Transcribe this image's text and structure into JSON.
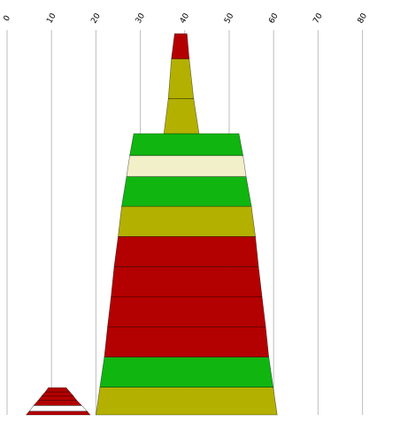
{
  "chart_data": {
    "type": "area",
    "title": "",
    "xlabel": "",
    "ylabel": "",
    "xlim": [
      0,
      85
    ],
    "x_ticks": [
      "0",
      "10",
      "20",
      "30",
      "40",
      "50",
      "60",
      "70",
      "80"
    ],
    "grid": true,
    "legend": "none",
    "colors": {
      "red": "#b30000",
      "olive": "#b3b000",
      "green": "#10b510",
      "cream": "#f2f0c8",
      "white": "#ffffff"
    },
    "stacks": [
      {
        "name_hint": "small-stack",
        "center_x": 10.5,
        "bands": [
          {
            "color": "red",
            "from": 0.0,
            "to": 0.9,
            "bottom": [
              4.3,
              18.7
            ],
            "top": [
              5.0,
              18.0
            ]
          },
          {
            "color": "white",
            "from": 0.9,
            "to": 2.3,
            "bottom": [
              5.0,
              18.0
            ],
            "top": [
              6.0,
              16.8
            ]
          },
          {
            "color": "red",
            "from": 2.3,
            "to": 3.5,
            "bottom": [
              6.0,
              16.8
            ],
            "top": [
              7.0,
              15.7
            ]
          },
          {
            "color": "red",
            "from": 3.5,
            "to": 4.6,
            "bottom": [
              7.0,
              15.7
            ],
            "top": [
              7.8,
              14.9
            ]
          },
          {
            "color": "red",
            "from": 4.6,
            "to": 5.6,
            "bottom": [
              7.8,
              14.9
            ],
            "top": [
              8.6,
              14.1
            ]
          },
          {
            "color": "red",
            "from": 5.6,
            "to": 6.6,
            "bottom": [
              8.6,
              14.1
            ],
            "top": [
              9.3,
              13.3
            ]
          }
        ]
      },
      {
        "name_hint": "large-stack",
        "center_x": 40.3,
        "bands": [
          {
            "color": "olive",
            "from": 0.0,
            "to": 6.7,
            "bottom": [
              20.0,
              60.8
            ],
            "top": [
              20.9,
              59.9
            ]
          },
          {
            "color": "green",
            "from": 6.7,
            "to": 14.0,
            "bottom": [
              20.9,
              59.9
            ],
            "top": [
              21.9,
              58.9
            ]
          },
          {
            "color": "red",
            "from": 14.0,
            "to": 21.3,
            "bottom": [
              21.9,
              58.9
            ],
            "top": [
              22.6,
              58.2
            ]
          },
          {
            "color": "red",
            "from": 21.3,
            "to": 28.6,
            "bottom": [
              22.6,
              58.2
            ],
            "top": [
              23.4,
              57.4
            ]
          },
          {
            "color": "red",
            "from": 28.6,
            "to": 35.9,
            "bottom": [
              23.4,
              57.4
            ],
            "top": [
              24.1,
              56.6
            ]
          },
          {
            "color": "red",
            "from": 35.9,
            "to": 43.2,
            "bottom": [
              24.1,
              56.6
            ],
            "top": [
              25.0,
              55.9
            ]
          },
          {
            "color": "olive",
            "from": 43.2,
            "to": 50.5,
            "bottom": [
              25.0,
              55.9
            ],
            "top": [
              25.8,
              55.0
            ]
          },
          {
            "color": "green",
            "from": 50.5,
            "to": 57.7,
            "bottom": [
              25.8,
              55.0
            ],
            "top": [
              26.9,
              53.8
            ]
          },
          {
            "color": "cream",
            "from": 57.7,
            "to": 62.8,
            "bottom": [
              26.9,
              53.8
            ],
            "top": [
              27.6,
              53.1
            ]
          },
          {
            "color": "green",
            "from": 62.8,
            "to": 68.1,
            "bottom": [
              27.6,
              53.1
            ],
            "top": [
              28.5,
              52.2
            ]
          },
          {
            "color": "olive",
            "from": 68.1,
            "to": 76.6,
            "bottom": [
              35.3,
              43.2
            ],
            "top": [
              36.3,
              42.0
            ]
          },
          {
            "color": "olive",
            "from": 76.6,
            "to": 86.2,
            "bottom": [
              36.3,
              42.0
            ],
            "top": [
              37.0,
              41.0
            ]
          },
          {
            "color": "red",
            "from": 86.2,
            "to": 92.3,
            "bottom": [
              37.0,
              41.0
            ],
            "top": [
              37.7,
              40.5
            ]
          }
        ]
      }
    ]
  }
}
